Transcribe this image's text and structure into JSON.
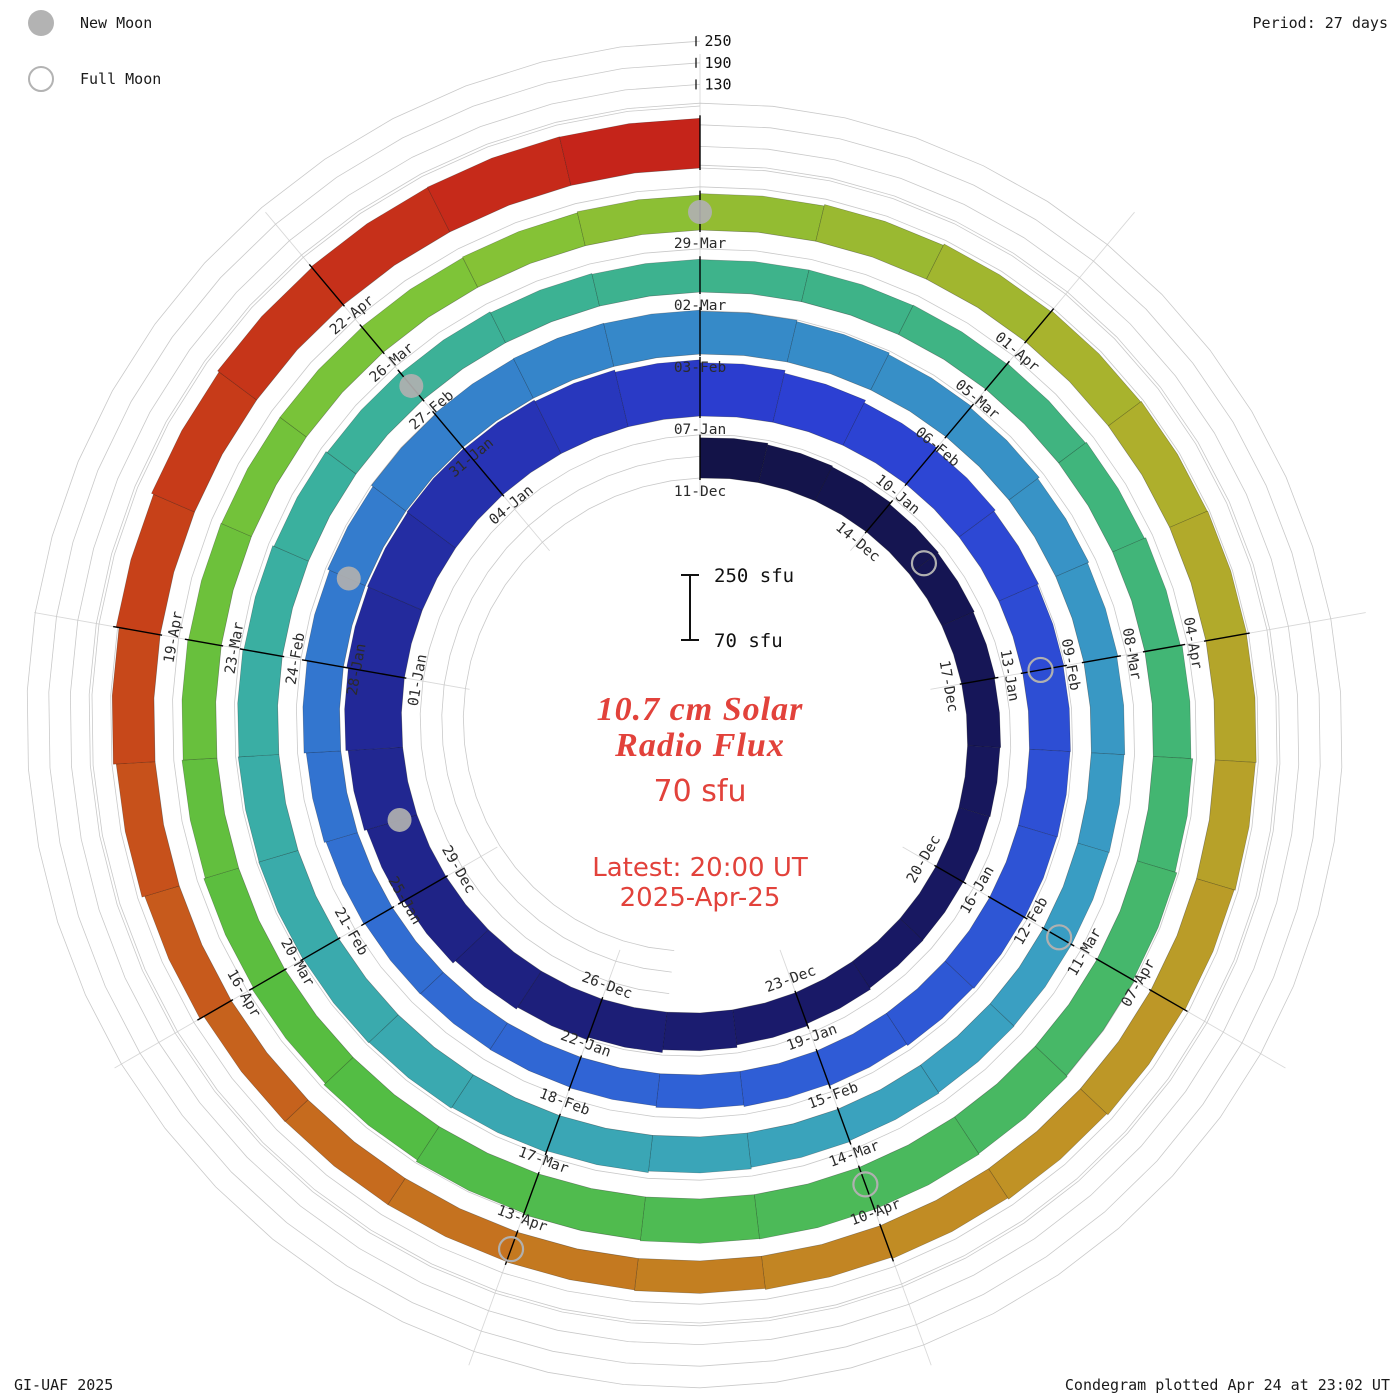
{
  "legend": {
    "new_moon": "New Moon",
    "full_moon": "Full Moon"
  },
  "period_label": "Period: 27 days",
  "credit": "GI-UAF 2025",
  "plotted_label": "Condegram plotted Apr 24 at 23:02 UT",
  "title_lines": [
    "10.7 cm Solar",
    "Radio Flux"
  ],
  "subtitle": "70 sfu",
  "latest_lines": [
    "Latest: 20:00 UT",
    "2025-Apr-25"
  ],
  "scale_bar": {
    "top": "250 sfu",
    "bottom": "70 sfu"
  },
  "chart_data": {
    "type": "bar",
    "layout": "polar-spiral condegram, clockwise, one revolution per period, bars start at baseline 70 sfu",
    "title": "10.7 cm Solar Radio Flux",
    "period_days": 27,
    "start_date": "2024-12-11",
    "last_data_date": "2025-04-24",
    "flux_baseline_sfu": 70,
    "rlim": [
      70,
      250
    ],
    "radial_ticks_sfu": [
      130,
      190,
      250
    ],
    "tick_label_step_days": 3,
    "tick_labels": [
      "11-Dec",
      "14-Dec",
      "17-Dec",
      "20-Dec",
      "23-Dec",
      "26-Dec",
      "29-Dec",
      "01-Jan",
      "04-Jan",
      "07-Jan",
      "10-Jan",
      "13-Jan",
      "16-Jan",
      "19-Jan",
      "22-Jan",
      "25-Jan",
      "28-Jan",
      "31-Jan",
      "03-Feb",
      "06-Feb",
      "09-Feb",
      "12-Feb",
      "15-Feb",
      "18-Feb",
      "21-Feb",
      "24-Feb",
      "27-Feb",
      "02-Mar",
      "05-Mar",
      "08-Mar",
      "11-Mar",
      "14-Mar",
      "17-Mar",
      "20-Mar",
      "23-Mar",
      "26-Mar",
      "29-Mar",
      "01-Apr",
      "04-Apr",
      "07-Apr",
      "10-Apr",
      "13-Apr",
      "16-Apr",
      "19-Apr",
      "22-Apr"
    ],
    "daily_flux": [
      182,
      178,
      175,
      170,
      168,
      165,
      162,
      160,
      158,
      157,
      158,
      162,
      168,
      175,
      183,
      190,
      196,
      205,
      215,
      222,
      228,
      233,
      236,
      238,
      236,
      232,
      226,
      218,
      210,
      202,
      195,
      190,
      186,
      184,
      183,
      182,
      180,
      177,
      173,
      168,
      164,
      160,
      158,
      157,
      158,
      161,
      166,
      172,
      178,
      184,
      189,
      192,
      193,
      192,
      189,
      185,
      180,
      175,
      170,
      166,
      163,
      161,
      160,
      160,
      161,
      163,
      166,
      170,
      174,
      178,
      181,
      183,
      184,
      183,
      181,
      178,
      174,
      170,
      166,
      163,
      161,
      160,
      160,
      161,
      163,
      166,
      170,
      175,
      180,
      185,
      189,
      192,
      194,
      194,
      193,
      190,
      186,
      181,
      176,
      171,
      167,
      164,
      162,
      161,
      161,
      162,
      164,
      167,
      171,
      175,
      179,
      182,
      184,
      185,
      184,
      182,
      179,
      175,
      171,
      167,
      163,
      160,
      158,
      157,
      157,
      158,
      170,
      178,
      186,
      194,
      200,
      205,
      208,
      209,
      208
    ],
    "new_moons": [
      "2024-12-30",
      "2025-01-29",
      "2025-02-27",
      "2025-03-29"
    ],
    "full_moons": [
      "2024-12-15",
      "2025-01-13",
      "2025-02-12",
      "2025-03-14",
      "2025-04-13"
    ],
    "color_stops": [
      {
        "t": 0,
        "c": "#131347"
      },
      {
        "t": 12,
        "c": "#191968"
      },
      {
        "t": 22,
        "c": "#232b9f"
      },
      {
        "t": 28,
        "c": "#2c3fd3"
      },
      {
        "t": 40,
        "c": "#2f5fd6"
      },
      {
        "t": 52,
        "c": "#3584ca"
      },
      {
        "t": 64,
        "c": "#3aa0c2"
      },
      {
        "t": 76,
        "c": "#3ab0a0"
      },
      {
        "t": 88,
        "c": "#42b673"
      },
      {
        "t": 98,
        "c": "#54bd41"
      },
      {
        "t": 106,
        "c": "#81c437"
      },
      {
        "t": 112,
        "c": "#acb12c"
      },
      {
        "t": 118,
        "c": "#bf9526"
      },
      {
        "t": 124,
        "c": "#c66f1e"
      },
      {
        "t": 129,
        "c": "#c74419"
      },
      {
        "t": 135,
        "c": "#c5211a"
      }
    ],
    "grid_color": "#c9c9c9",
    "text_accent_color": "#e2423b",
    "moon_marker_color": "#b0b0b0"
  }
}
